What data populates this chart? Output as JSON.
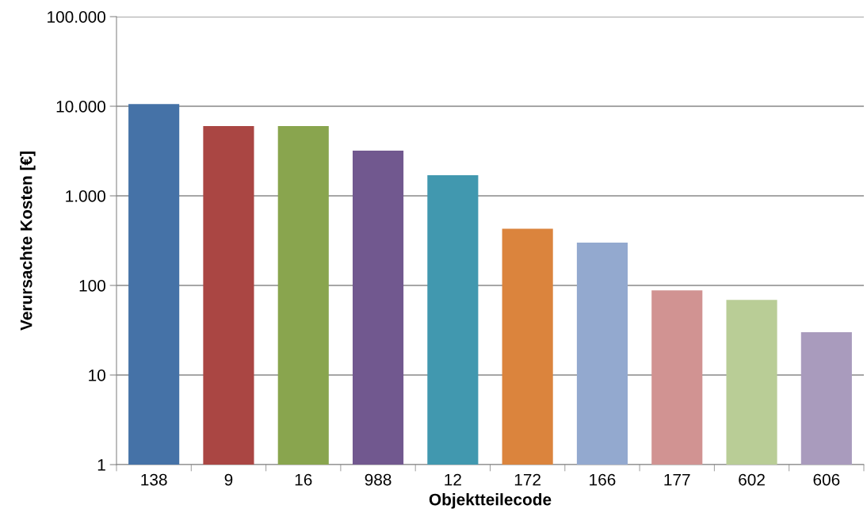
{
  "chart_data": {
    "type": "bar",
    "xlabel": "Objektteilecode",
    "ylabel": "Verursachte Kosten [€]",
    "categories": [
      "138",
      "9",
      "16",
      "988",
      "12",
      "172",
      "166",
      "177",
      "602",
      "606"
    ],
    "values": [
      10600,
      6000,
      6000,
      3200,
      1700,
      430,
      300,
      88,
      69,
      30
    ],
    "colors": [
      "#4572a7",
      "#aa4643",
      "#89a54e",
      "#71588f",
      "#4198af",
      "#db843d",
      "#93a9cf",
      "#d19392",
      "#b9cd96",
      "#a99bbd"
    ],
    "log": true,
    "ylim": [
      1,
      100000
    ],
    "yticks": [
      1,
      10,
      100,
      {
        "value": 1000,
        "label": "1.000"
      },
      {
        "value": 10000,
        "label": "10.000"
      },
      {
        "value": 100000,
        "label": "100.000"
      }
    ],
    "grid": "y",
    "legend": false
  }
}
